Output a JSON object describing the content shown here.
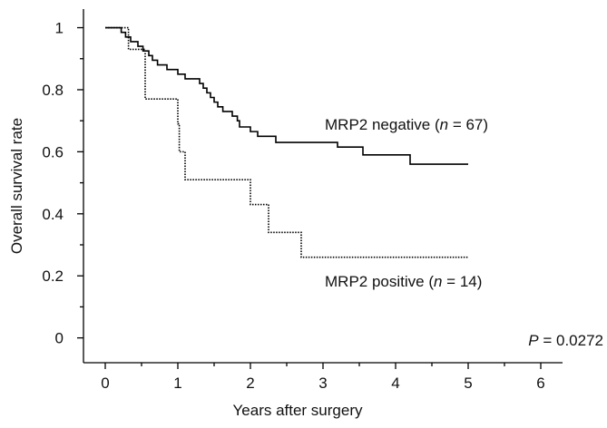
{
  "chart_data": {
    "type": "line",
    "x_label": "Years after surgery",
    "y_label": "Overall survival rate",
    "xlim": [
      -0.3,
      6.3
    ],
    "ylim": [
      -0.08,
      1.06
    ],
    "xticks": [
      0,
      1,
      2,
      3,
      4,
      5,
      6
    ],
    "yticks": [
      0,
      0.2,
      0.4,
      0.6,
      0.8,
      1
    ],
    "xminorticks": [
      0.5,
      1.5,
      2.5,
      3.5,
      4.5,
      5.5
    ],
    "yminorticks": [
      0.1,
      0.3,
      0.5,
      0.7,
      0.9
    ],
    "series": [
      {
        "name": "MRP2 negative",
        "color": "#000000",
        "dash": "solid",
        "x": [
          0,
          0.22,
          0.22,
          0.28,
          0.28,
          0.35,
          0.35,
          0.45,
          0.45,
          0.52,
          0.52,
          0.6,
          0.6,
          0.65,
          0.65,
          0.72,
          0.72,
          0.85,
          0.85,
          1.0,
          1.0,
          1.1,
          1.1,
          1.3,
          1.3,
          1.35,
          1.35,
          1.4,
          1.4,
          1.45,
          1.45,
          1.5,
          1.5,
          1.55,
          1.55,
          1.62,
          1.62,
          1.75,
          1.75,
          1.82,
          1.82,
          1.85,
          1.85,
          2.0,
          2.0,
          2.1,
          2.1,
          2.35,
          2.35,
          3.2,
          3.2,
          3.55,
          3.55,
          4.2,
          4.2,
          5
        ],
        "values": [
          1,
          1,
          0.985,
          0.985,
          0.97,
          0.97,
          0.955,
          0.955,
          0.94,
          0.94,
          0.925,
          0.925,
          0.91,
          0.91,
          0.895,
          0.895,
          0.88,
          0.88,
          0.865,
          0.865,
          0.85,
          0.85,
          0.835,
          0.835,
          0.82,
          0.82,
          0.805,
          0.805,
          0.79,
          0.79,
          0.775,
          0.775,
          0.76,
          0.76,
          0.745,
          0.745,
          0.73,
          0.73,
          0.715,
          0.715,
          0.7,
          0.7,
          0.68,
          0.68,
          0.665,
          0.665,
          0.65,
          0.65,
          0.63,
          0.63,
          0.615,
          0.615,
          0.59,
          0.59,
          0.56,
          0.56
        ]
      },
      {
        "name": "MRP2 positive",
        "color": "#000000",
        "dash": "dotted",
        "x": [
          0,
          0.32,
          0.32,
          0.55,
          0.55,
          1.0,
          1.0,
          1.02,
          1.02,
          1.1,
          1.1,
          2.0,
          2.0,
          2.25,
          2.25,
          2.7,
          2.7,
          5
        ],
        "values": [
          1,
          1,
          0.93,
          0.93,
          0.77,
          0.77,
          0.69,
          0.69,
          0.6,
          0.6,
          0.51,
          0.51,
          0.43,
          0.43,
          0.34,
          0.34,
          0.26,
          0.26
        ]
      }
    ],
    "annotations": [
      {
        "parts": [
          "MRP2 negative (",
          "n",
          " = 67)"
        ]
      },
      {
        "parts": [
          "MRP2 positive (",
          "n",
          " = 14)"
        ]
      },
      {
        "parts": [
          "P",
          " = 0.0272"
        ]
      }
    ]
  }
}
